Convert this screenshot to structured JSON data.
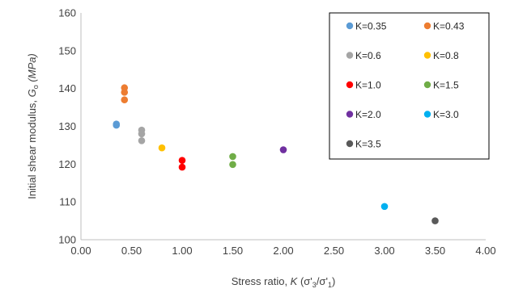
{
  "chart_data": {
    "type": "scatter",
    "title": "",
    "xlabel": {
      "prefix": "Stress ratio, ",
      "var": "K",
      "suffix": " (σ'",
      "sub1": "3",
      "mid": "/σ'",
      "sub2": "1",
      "end": ")"
    },
    "ylabel": {
      "prefix": "Initial shear modulus,  ",
      "var": "G",
      "sub": "o",
      "suffix": " (MPa)"
    },
    "xlim": [
      0,
      4
    ],
    "ylim": [
      100,
      160
    ],
    "xticks": [
      "0.00",
      "0.50",
      "1.00",
      "1.50",
      "2.00",
      "2.50",
      "3.00",
      "3.50",
      "4.00"
    ],
    "yticks": [
      "100",
      "110",
      "120",
      "130",
      "140",
      "150",
      "160"
    ],
    "grid": false,
    "legend_position": "top-right",
    "series": [
      {
        "name": "K=0.35",
        "color": "#5B9BD5",
        "points": [
          [
            0.35,
            130.6
          ],
          [
            0.35,
            130.3
          ]
        ]
      },
      {
        "name": "K=0.43",
        "color": "#ED7D31",
        "points": [
          [
            0.43,
            140.2
          ],
          [
            0.43,
            139.0
          ],
          [
            0.43,
            137.0
          ]
        ]
      },
      {
        "name": "K=0.6",
        "color": "#A5A5A5",
        "points": [
          [
            0.6,
            129.0
          ],
          [
            0.6,
            128.0
          ],
          [
            0.6,
            126.2
          ]
        ]
      },
      {
        "name": "K=0.8",
        "color": "#FFC000",
        "points": [
          [
            0.8,
            124.3
          ]
        ]
      },
      {
        "name": "K=1.0",
        "color": "#FF0000",
        "points": [
          [
            1.0,
            121.0
          ],
          [
            1.0,
            119.2
          ]
        ]
      },
      {
        "name": "K=1.5",
        "color": "#70AD47",
        "points": [
          [
            1.5,
            122.0
          ],
          [
            1.5,
            119.9
          ]
        ]
      },
      {
        "name": "K=2.0",
        "color": "#7030A0",
        "points": [
          [
            2.0,
            123.8
          ]
        ]
      },
      {
        "name": "K=3.0",
        "color": "#00B0F0",
        "points": [
          [
            3.0,
            108.8
          ]
        ]
      },
      {
        "name": "K=3.5",
        "color": "#595959",
        "points": [
          [
            3.5,
            105.0
          ]
        ]
      }
    ]
  }
}
